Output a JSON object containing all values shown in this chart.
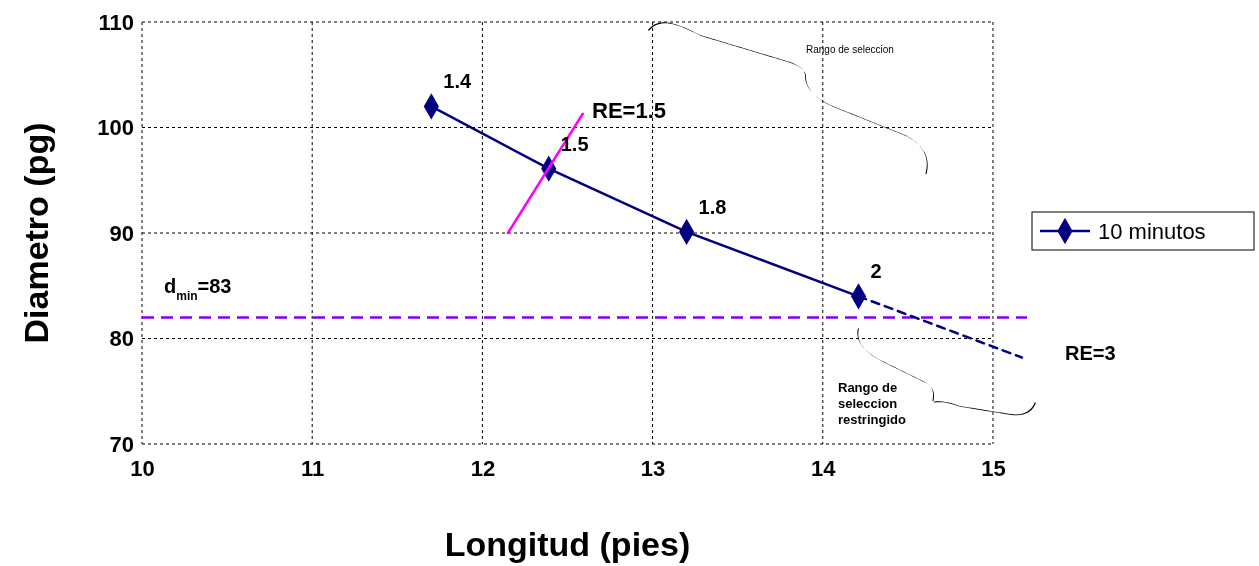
{
  "chart_data": {
    "type": "line",
    "xlabel": "Longitud (pies)",
    "ylabel": "Diametro (pg)",
    "xlim": [
      10,
      15.2
    ],
    "xticks": [
      10,
      11,
      12,
      13,
      14,
      15
    ],
    "ylim": [
      70,
      110
    ],
    "yticks": [
      70,
      80,
      90,
      100,
      110
    ],
    "grid": true,
    "legend": "right",
    "series": [
      {
        "name": "10 minutos",
        "color": "#000080",
        "x": [
          11.7,
          12.39,
          13.2,
          14.21
        ],
        "values": [
          102,
          96.1,
          90.1,
          84
        ],
        "marker": "diamond",
        "line_style": "solid"
      },
      {
        "color": "#000080",
        "x": [
          14.21,
          15.17
        ],
        "values": [
          84,
          78.2
        ],
        "marker": "none",
        "line_style": "dashed"
      },
      {
        "color": "#ff00ff",
        "x": [
          12.15,
          12.59
        ],
        "values": [
          90,
          101.3
        ],
        "marker": "none",
        "line_style": "solid"
      }
    ],
    "ref_lines": [
      {
        "axis": "y",
        "value": 82,
        "color": "#8000ff",
        "line_style": "dashed"
      }
    ],
    "annotations": [
      {
        "text": "1.4",
        "x": 11.7,
        "y": 102
      },
      {
        "text": "1.5",
        "x": 12.39,
        "y": 96.1
      },
      {
        "text": "1.8",
        "x": 13.2,
        "y": 90.1
      },
      {
        "text": "2",
        "x": 14.21,
        "y": 84
      },
      "RE=1.5",
      "RE=3",
      "Rango de seleccion",
      "Rango de\nseleccion\nrestringido",
      "d$_{min}$=83"
    ]
  }
}
